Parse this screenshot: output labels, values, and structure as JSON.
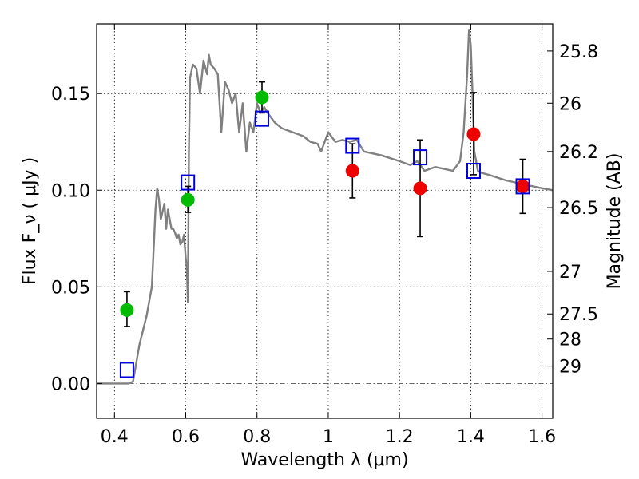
{
  "chart_data": {
    "type": "scatter",
    "xlabel": "Wavelength  λ (μm)",
    "ylabel": "Flux  F_ν  ( μJy )",
    "ylabel_right": "Magnitude (AB)",
    "xlim": [
      0.35,
      1.63
    ],
    "ylim": [
      -0.018,
      0.186
    ],
    "grid": true,
    "x_ticks": [
      0.4,
      0.6,
      0.8,
      1.0,
      1.2,
      1.4,
      1.6
    ],
    "x_tick_labels": [
      "0.4",
      "0.6",
      "0.8",
      "1",
      "1.2",
      "1.4",
      "1.6"
    ],
    "y_ticks": [
      0.0,
      0.05,
      0.1,
      0.15
    ],
    "y_tick_labels": [
      "0.00",
      "0.05",
      "0.10",
      "0.15"
    ],
    "mag_ticks": [
      {
        "label": "25.8",
        "flux": 0.172
      },
      {
        "label": "26",
        "flux": 0.145
      },
      {
        "label": "26.2",
        "flux": 0.12
      },
      {
        "label": "26.5",
        "flux": 0.091
      },
      {
        "label": "27",
        "flux": 0.058
      },
      {
        "label": "27.5",
        "flux": 0.036
      },
      {
        "label": "28",
        "flux": 0.023
      },
      {
        "label": "29",
        "flux": 0.009
      }
    ],
    "zero_line": 0.0,
    "series": [
      {
        "marker": "circle",
        "color": "#00bb00",
        "points": [
          {
            "x": 0.435,
            "y": 0.038,
            "yerr": [
              0.0085,
              0.0095
            ]
          },
          {
            "x": 0.606,
            "y": 0.095,
            "yerr": [
              0.0065,
              0.007
            ]
          },
          {
            "x": 0.814,
            "y": 0.148,
            "yerr": [
              0.008,
              0.008
            ]
          }
        ]
      },
      {
        "marker": "circle",
        "color": "#ee0000",
        "points": [
          {
            "x": 1.068,
            "y": 0.11,
            "yerr": [
              0.014,
              0.014
            ]
          },
          {
            "x": 1.258,
            "y": 0.101,
            "yerr": [
              0.025,
              0.025
            ]
          },
          {
            "x": 1.408,
            "y": 0.129,
            "yerr": [
              0.021,
              0.0215
            ]
          },
          {
            "x": 1.546,
            "y": 0.102,
            "yerr": [
              0.014,
              0.014
            ]
          }
        ]
      },
      {
        "marker": "open-square",
        "color": "#0000dd",
        "points": [
          {
            "x": 0.435,
            "y": 0.007
          },
          {
            "x": 0.606,
            "y": 0.104
          },
          {
            "x": 0.814,
            "y": 0.137
          },
          {
            "x": 1.068,
            "y": 0.123
          },
          {
            "x": 1.258,
            "y": 0.117
          },
          {
            "x": 1.408,
            "y": 0.11
          },
          {
            "x": 1.546,
            "y": 0.102
          }
        ]
      },
      {
        "type": "line",
        "color": "#808080",
        "x": [
          0.35,
          0.44,
          0.452,
          0.47,
          0.49,
          0.5,
          0.505,
          0.51,
          0.515,
          0.52,
          0.525,
          0.53,
          0.54,
          0.545,
          0.55,
          0.56,
          0.565,
          0.57,
          0.575,
          0.58,
          0.585,
          0.59,
          0.595,
          0.6,
          0.603,
          0.606,
          0.609,
          0.612,
          0.62,
          0.63,
          0.64,
          0.65,
          0.66,
          0.665,
          0.67,
          0.68,
          0.69,
          0.7,
          0.71,
          0.72,
          0.73,
          0.74,
          0.75,
          0.76,
          0.77,
          0.78,
          0.79,
          0.8,
          0.81,
          0.82,
          0.83,
          0.85,
          0.87,
          0.9,
          0.93,
          0.95,
          0.97,
          0.98,
          1.0,
          1.02,
          1.04,
          1.06,
          1.08,
          1.1,
          1.15,
          1.2,
          1.23,
          1.25,
          1.27,
          1.3,
          1.35,
          1.37,
          1.38,
          1.39,
          1.395,
          1.4,
          1.405,
          1.41,
          1.42,
          1.43,
          1.45,
          1.5,
          1.55,
          1.6,
          1.63
        ],
        "y": [
          0.0,
          0.0,
          0.001,
          0.02,
          0.035,
          0.045,
          0.05,
          0.07,
          0.09,
          0.101,
          0.095,
          0.085,
          0.093,
          0.08,
          0.09,
          0.08,
          0.08,
          0.078,
          0.075,
          0.077,
          0.072,
          0.073,
          0.077,
          0.065,
          0.06,
          0.042,
          0.12,
          0.158,
          0.165,
          0.163,
          0.15,
          0.167,
          0.16,
          0.17,
          0.165,
          0.163,
          0.16,
          0.13,
          0.156,
          0.152,
          0.145,
          0.15,
          0.13,
          0.145,
          0.12,
          0.135,
          0.13,
          0.145,
          0.14,
          0.143,
          0.14,
          0.135,
          0.132,
          0.13,
          0.128,
          0.125,
          0.124,
          0.12,
          0.13,
          0.125,
          0.126,
          0.125,
          0.126,
          0.12,
          0.118,
          0.115,
          0.113,
          0.115,
          0.11,
          0.112,
          0.11,
          0.115,
          0.13,
          0.16,
          0.183,
          0.175,
          0.15,
          0.12,
          0.11,
          0.109,
          0.108,
          0.105,
          0.103,
          0.101,
          0.1
        ]
      }
    ]
  }
}
